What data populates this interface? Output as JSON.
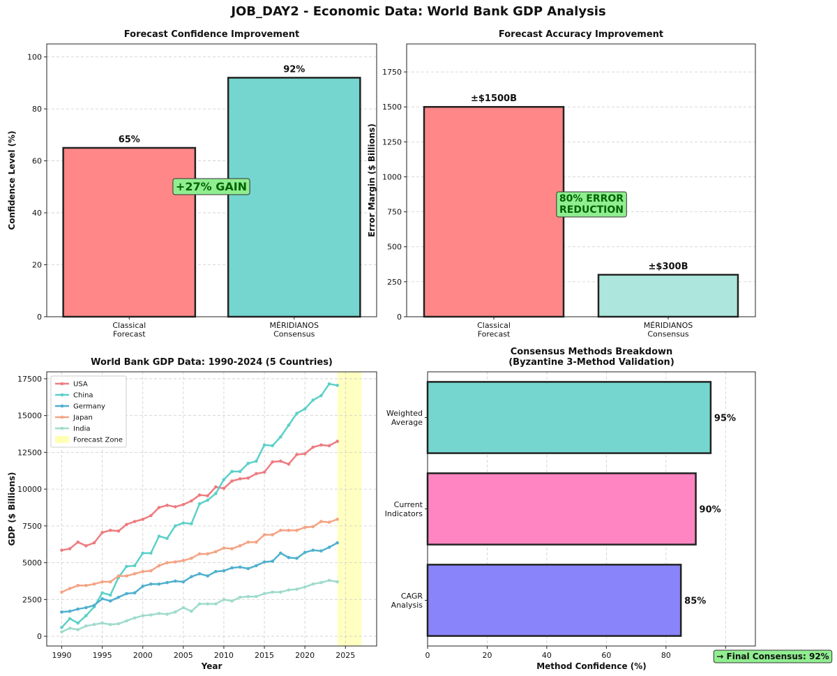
{
  "title": "JOB_DAY2 - Economic Data: World Bank GDP Analysis",
  "chart_data": [
    {
      "type": "bar",
      "title": "Forecast Confidence Improvement",
      "ylabel": "Confidence Level (%)",
      "categories": [
        "Classical\nForecast",
        "MÉRIDIANOS\nConsensus"
      ],
      "values": [
        65,
        92
      ],
      "value_labels": [
        "65%",
        "92%"
      ],
      "colors": [
        "#ff8787",
        "#74d6cf"
      ],
      "ylim": [
        0,
        105
      ],
      "yticks": [
        0,
        20,
        40,
        60,
        80,
        100
      ],
      "grid": true,
      "annotations": [
        "+27% GAIN"
      ]
    },
    {
      "type": "bar",
      "title": "Forecast Accuracy Improvement",
      "ylabel": "Error Margin ($ Billions)",
      "categories": [
        "Classical\nForecast",
        "MÉRIDIANOS\nConsensus"
      ],
      "values": [
        1500,
        300
      ],
      "value_labels": [
        "±$1500B",
        "±$300B"
      ],
      "colors": [
        "#ff8787",
        "#ace6dc"
      ],
      "ylim": [
        0,
        1950
      ],
      "yticks": [
        0,
        250,
        500,
        750,
        1000,
        1250,
        1500,
        1750
      ],
      "grid": true,
      "annotations": [
        "80% ERROR\nREDUCTION"
      ]
    },
    {
      "type": "line",
      "title": "World Bank GDP Data: 1990-2024 (5 Countries)",
      "xlabel": "Year",
      "ylabel": "GDP ($ Billions)",
      "x": [
        1990,
        1991,
        1992,
        1993,
        1994,
        1995,
        1996,
        1997,
        1998,
        1999,
        2000,
        2001,
        2002,
        2003,
        2004,
        2005,
        2006,
        2007,
        2008,
        2009,
        2010,
        2011,
        2012,
        2013,
        2014,
        2015,
        2016,
        2017,
        2018,
        2019,
        2020,
        2021,
        2022,
        2023,
        2024
      ],
      "series": [
        {
          "name": "USA",
          "color": "#ee7b80",
          "values": [
            5850,
            5950,
            6400,
            6150,
            6350,
            7050,
            7200,
            7150,
            7600,
            7800,
            7950,
            8200,
            8750,
            8900,
            8800,
            8950,
            9200,
            9600,
            9550,
            10150,
            10050,
            10550,
            10700,
            10750,
            11050,
            11150,
            11850,
            11900,
            11700,
            12350,
            12400,
            12850,
            13000,
            12950,
            13250
          ]
        },
        {
          "name": "China",
          "color": "#5cd0c8",
          "values": [
            600,
            1200,
            900,
            1400,
            2000,
            2950,
            2800,
            4000,
            4750,
            4800,
            5650,
            5650,
            6800,
            6650,
            7500,
            7700,
            7650,
            9000,
            9250,
            9700,
            10650,
            11200,
            11200,
            11750,
            11900,
            13000,
            12950,
            13550,
            14350,
            15150,
            15450,
            16050,
            16350,
            17150,
            17050
          ]
        },
        {
          "name": "Germany",
          "color": "#4fb0cf",
          "values": [
            1650,
            1700,
            1850,
            1950,
            2100,
            2550,
            2400,
            2650,
            2900,
            2950,
            3400,
            3550,
            3550,
            3650,
            3750,
            3700,
            4050,
            4250,
            4100,
            4400,
            4450,
            4650,
            4700,
            4600,
            4800,
            5050,
            5100,
            5650,
            5350,
            5300,
            5700,
            5850,
            5800,
            6050,
            6350
          ]
        },
        {
          "name": "Japan",
          "color": "#f5a384",
          "values": [
            3000,
            3250,
            3450,
            3450,
            3550,
            3700,
            3700,
            4100,
            4100,
            4250,
            4400,
            4450,
            4800,
            5000,
            5050,
            5150,
            5300,
            5600,
            5600,
            5750,
            6000,
            5950,
            6150,
            6400,
            6400,
            6900,
            6900,
            7200,
            7200,
            7200,
            7400,
            7450,
            7800,
            7750,
            7950
          ]
        },
        {
          "name": "India",
          "color": "#9fdbcc",
          "values": [
            300,
            550,
            450,
            700,
            800,
            900,
            800,
            850,
            1050,
            1250,
            1400,
            1450,
            1550,
            1500,
            1650,
            1950,
            1700,
            2200,
            2200,
            2200,
            2500,
            2400,
            2650,
            2700,
            2700,
            2900,
            3000,
            3000,
            3150,
            3200,
            3350,
            3550,
            3650,
            3800,
            3700
          ]
        }
      ],
      "shade": {
        "name": "Forecast Zone",
        "range": [
          2024,
          2027
        ],
        "color": "#ffffb3"
      },
      "xlim": [
        1988.15,
        2028.85
      ],
      "xticks": [
        1990,
        1995,
        2000,
        2005,
        2010,
        2015,
        2020,
        2025
      ],
      "ylim": [
        -660,
        17970
      ],
      "yticks": [
        0,
        2500,
        5000,
        7500,
        10000,
        12500,
        15000,
        17500
      ],
      "grid": true,
      "legend": "upper left"
    },
    {
      "type": "barh",
      "title": "Consensus Methods Breakdown\n(Byzantine 3-Method Validation)",
      "xlabel": "Method Confidence (%)",
      "categories": [
        "CAGR\nAnalysis",
        "Current\nIndicators",
        "Weighted\nAverage"
      ],
      "values": [
        85,
        90,
        95
      ],
      "value_labels": [
        "85%",
        "90%",
        "95%"
      ],
      "colors": [
        "#8984fa",
        "#ff85c2",
        "#74d6cf"
      ],
      "xlim": [
        0,
        110
      ],
      "xticks": [
        0,
        20,
        40,
        60,
        80,
        100
      ],
      "grid": true,
      "annotations": [
        "→ Final Consensus: 92%"
      ]
    }
  ]
}
